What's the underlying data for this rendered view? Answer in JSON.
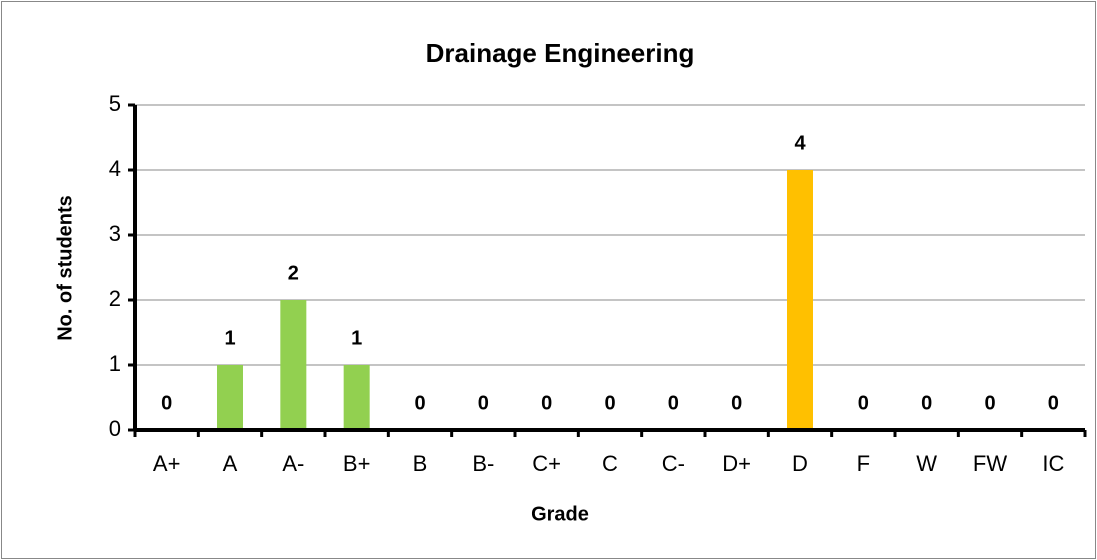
{
  "chart_data": {
    "type": "bar",
    "title": "Drainage Engineering",
    "x_label": "Grade",
    "y_label": "No. of students",
    "categories": [
      "A+",
      "A",
      "A-",
      "B+",
      "B",
      "B-",
      "C+",
      "C",
      "C-",
      "D+",
      "D",
      "F",
      "W",
      "FW",
      "IC"
    ],
    "values": [
      0,
      1,
      2,
      1,
      0,
      0,
      0,
      0,
      0,
      0,
      4,
      0,
      0,
      0,
      0
    ],
    "colors": [
      "#92d050",
      "#92d050",
      "#92d050",
      "#92d050",
      "#92d050",
      "#92d050",
      "#92d050",
      "#92d050",
      "#92d050",
      "#92d050",
      "#ffc000",
      "#92d050",
      "#92d050",
      "#92d050",
      "#92d050"
    ],
    "ylim": [
      0,
      5
    ],
    "yticks": [
      0,
      1,
      2,
      3,
      4,
      5
    ],
    "grid": true
  }
}
